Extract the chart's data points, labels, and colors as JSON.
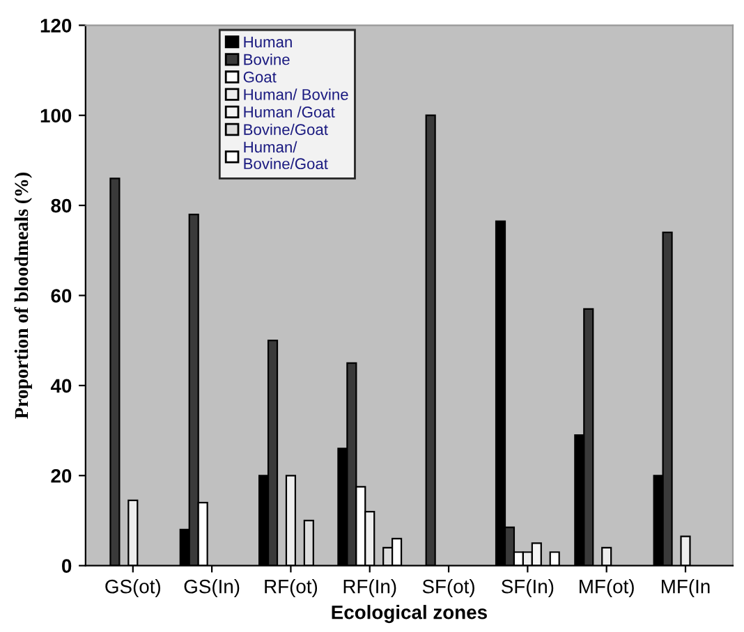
{
  "chart_data": {
    "type": "bar",
    "xlabel": "Ecological zones",
    "ylabel": "Proportion of bloodmeals (%)",
    "categories": [
      "GS(ot)",
      "GS(In)",
      "RF(ot)",
      "RF(In)",
      "SF(ot)",
      "SF(In)",
      "MF(ot)",
      "MF(In"
    ],
    "series": [
      {
        "name": "Human",
        "color": "#000000",
        "values": [
          0,
          8,
          20,
          26,
          0,
          76.5,
          29,
          20
        ]
      },
      {
        "name": "Bovine",
        "color": "#3a3a3a",
        "values": [
          86,
          78,
          50,
          45,
          100,
          8.5,
          57,
          74
        ]
      },
      {
        "name": "Goat",
        "color": "#ffffff",
        "values": [
          0,
          14,
          0,
          17.5,
          0,
          3,
          0,
          0
        ]
      },
      {
        "name": "Human/ Bovine",
        "color": "#eeeeee",
        "values": [
          14.5,
          0,
          20,
          12,
          0,
          3,
          4,
          6.5
        ]
      },
      {
        "name": "Human /Goat",
        "color": "#f5f5f5",
        "values": [
          0,
          0,
          0,
          0,
          0,
          5,
          0,
          0
        ]
      },
      {
        "name": "Bovine/Goat",
        "color": "#dddddd",
        "values": [
          0,
          0,
          10,
          4,
          0,
          0,
          0,
          0
        ]
      },
      {
        "name": "Human/\nBovine/Goat",
        "color": "#ffffff",
        "values": [
          0,
          0,
          0,
          6,
          0,
          3,
          0,
          0
        ]
      }
    ],
    "ylim": [
      0,
      120
    ],
    "yticks": [
      0,
      20,
      40,
      60,
      80,
      100,
      120
    ],
    "grid": false,
    "legend": "top"
  }
}
